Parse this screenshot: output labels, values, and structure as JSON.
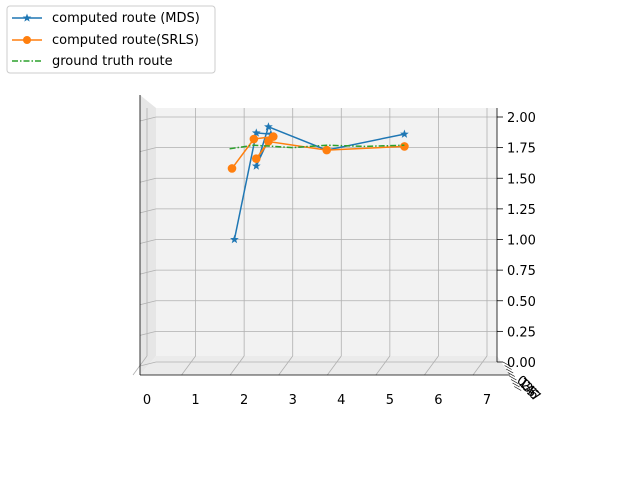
{
  "chart_data": {
    "type": "line",
    "projection": "3d",
    "title": "",
    "xlabel": "",
    "ylabel": "",
    "zlabel": "",
    "xlim": [
      0,
      7
    ],
    "ylim": [
      0,
      7
    ],
    "zlim": [
      0,
      2
    ],
    "xticks": [
      "0",
      "1",
      "2",
      "3",
      "4",
      "5",
      "6",
      "7"
    ],
    "yticks": [
      "0",
      "1",
      "2",
      "3",
      "4",
      "5",
      "6",
      "7"
    ],
    "zticks": [
      "0.00",
      "0.25",
      "0.50",
      "0.75",
      "1.00",
      "1.25",
      "1.50",
      "1.75",
      "2.00"
    ],
    "grid": true,
    "legend_position": "top-left",
    "series": [
      {
        "name": "computed route (MDS)",
        "color": "#1f77b4",
        "marker": "star",
        "line": "solid",
        "points": [
          {
            "x": 1.8,
            "z": 1.0
          },
          {
            "x": 2.25,
            "z": 1.87
          },
          {
            "x": 2.55,
            "z": 1.86
          },
          {
            "x": 2.25,
            "z": 1.6
          },
          {
            "x": 2.5,
            "z": 1.92
          },
          {
            "x": 3.7,
            "z": 1.73
          },
          {
            "x": 5.3,
            "z": 1.86
          }
        ]
      },
      {
        "name": "computed route(SRLS)",
        "color": "#ff7f0e",
        "marker": "circle",
        "line": "solid",
        "points": [
          {
            "x": 1.75,
            "z": 1.58
          },
          {
            "x": 2.2,
            "z": 1.82
          },
          {
            "x": 2.6,
            "z": 1.84
          },
          {
            "x": 2.25,
            "z": 1.66
          },
          {
            "x": 2.5,
            "z": 1.8
          },
          {
            "x": 3.7,
            "z": 1.73
          },
          {
            "x": 5.3,
            "z": 1.76
          }
        ]
      },
      {
        "name": "ground truth route",
        "color": "#2ca02c",
        "marker": "none",
        "line": "dashdot",
        "points": [
          {
            "x": 1.7,
            "z": 1.74
          },
          {
            "x": 2.2,
            "z": 1.77
          },
          {
            "x": 3.0,
            "z": 1.75
          },
          {
            "x": 3.7,
            "z": 1.77
          },
          {
            "x": 4.5,
            "z": 1.76
          },
          {
            "x": 5.3,
            "z": 1.77
          }
        ]
      }
    ]
  }
}
